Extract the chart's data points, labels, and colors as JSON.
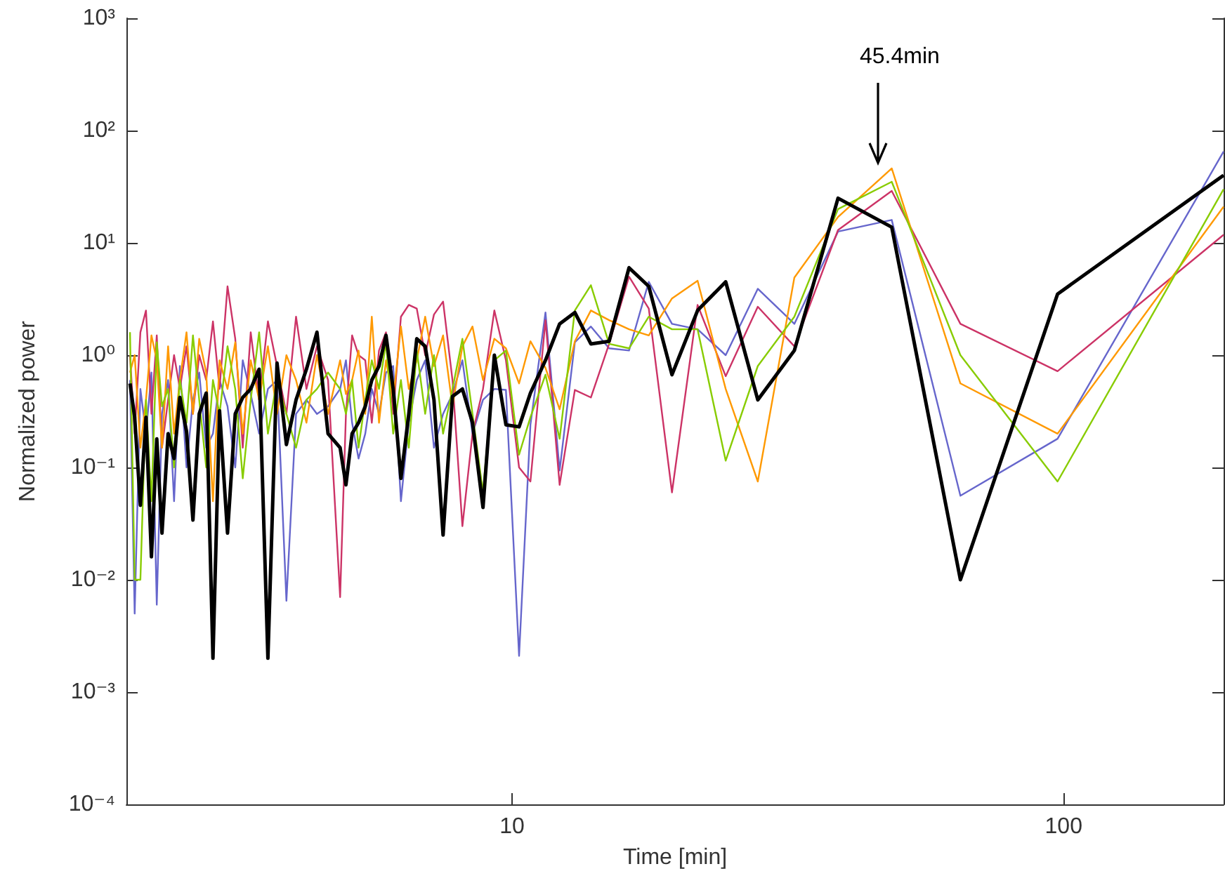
{
  "chart_data": {
    "type": "line",
    "xlabel": "Time [min]",
    "ylabel": "Normalized power",
    "log": "xy",
    "grid": false,
    "marker": "none",
    "line_style": "solid",
    "xlim": [
      2,
      195
    ],
    "xticks": [
      10,
      100
    ],
    "ylim": [
      0.0001,
      1000
    ],
    "yticks": [
      {
        "value": 0.0001,
        "label": "10⁻⁴"
      },
      {
        "value": 0.001,
        "label": "10⁻³"
      },
      {
        "value": 0.01,
        "label": "10⁻²"
      },
      {
        "value": 0.1,
        "label": "10⁻¹"
      },
      {
        "value": 1,
        "label": "10⁰"
      },
      {
        "value": 10,
        "label": "10¹"
      },
      {
        "value": 100,
        "label": "10²"
      },
      {
        "value": 1000,
        "label": "10³"
      }
    ],
    "annotations": [
      "45.4min"
    ],
    "x": [
      195,
      97.5,
      65,
      48.8,
      39,
      32.5,
      27.9,
      24.4,
      21.7,
      19.5,
      17.7,
      16.3,
      15,
      13.9,
      13,
      12.2,
      11.5,
      10.8,
      10.3,
      9.75,
      9.29,
      8.86,
      8.48,
      8.13,
      7.8,
      7.5,
      7.22,
      6.96,
      6.72,
      6.5,
      6.29,
      6.09,
      5.91,
      5.74,
      5.57,
      5.42,
      5.27,
      5.13,
      5,
      4.88,
      4.64,
      4.43,
      4.24,
      4.06,
      3.9,
      3.75,
      3.61,
      3.48,
      3.36,
      3.25,
      3.15,
      3.05,
      2.95,
      2.87,
      2.79,
      2.71,
      2.64,
      2.57,
      2.5,
      2.44,
      2.38,
      2.32,
      2.27,
      2.22,
      2.17,
      2.12,
      2.07,
      2.03
    ],
    "series": [
      {
        "color": "#6666cc",
        "values": [
          65,
          0.18,
          0.056,
          16,
          12.6,
          1.9,
          3.9,
          1.0,
          1.7,
          1.9,
          4.5,
          1.1,
          1.15,
          1.8,
          1.3,
          0.094,
          2.4,
          0.24,
          0.0021,
          0.49,
          0.5,
          0.4,
          0.2,
          0.9,
          0.45,
          0.3,
          0.15,
          0.9,
          0.6,
          0.25,
          0.05,
          0.8,
          0.7,
          0.3,
          0.5,
          0.2,
          0.12,
          0.25,
          0.9,
          0.5,
          0.35,
          0.3,
          0.4,
          0.3,
          0.0065,
          0.6,
          0.5,
          0.2,
          0.45,
          0.9,
          0.1,
          0.35,
          0.6,
          0.2,
          0.15,
          0.7,
          0.4,
          0.1,
          0.8,
          0.05,
          0.6,
          0.3,
          0.006,
          0.7,
          0.2,
          0.5,
          0.005,
          0.6
        ]
      },
      {
        "color": "#cc3366",
        "values": [
          11.8,
          0.72,
          1.9,
          29,
          13,
          1.2,
          2.7,
          0.65,
          2.8,
          0.06,
          2.6,
          5.0,
          1.26,
          0.42,
          0.49,
          0.07,
          2.05,
          0.075,
          0.1,
          0.9,
          2.5,
          0.5,
          0.2,
          0.03,
          0.6,
          3.0,
          2.3,
          1.0,
          2.6,
          2.8,
          2.2,
          0.3,
          1.6,
          1.1,
          0.25,
          0.9,
          1.0,
          1.5,
          0.3,
          0.007,
          0.6,
          1.2,
          0.5,
          2.2,
          0.3,
          0.8,
          2.0,
          0.4,
          1.6,
          0.15,
          1.4,
          4.1,
          0.5,
          2.0,
          0.6,
          1.0,
          0.3,
          1.2,
          0.5,
          1.0,
          0.4,
          0.15,
          1.5,
          0.3,
          2.5,
          1.6,
          0.2,
          1.0
        ]
      },
      {
        "color": "#ff9900",
        "values": [
          21,
          0.2,
          0.56,
          46,
          17,
          4.9,
          0.075,
          0.5,
          4.6,
          3.2,
          1.5,
          1.7,
          2.05,
          2.5,
          1.33,
          0.33,
          0.77,
          1.33,
          0.56,
          1.15,
          1.4,
          0.6,
          1.8,
          1.2,
          0.35,
          1.5,
          0.8,
          2.2,
          0.9,
          0.5,
          1.8,
          0.4,
          0.9,
          0.25,
          2.2,
          0.3,
          1.1,
          0.6,
          0.45,
          0.9,
          0.3,
          1.0,
          0.25,
          0.6,
          1.0,
          0.3,
          1.2,
          0.4,
          0.9,
          0.2,
          1.3,
          0.5,
          0.9,
          0.05,
          0.7,
          1.4,
          0.3,
          1.6,
          0.6,
          0.2,
          1.2,
          0.15,
          0.9,
          1.5,
          0.4,
          0.15,
          1.0,
          0.7
        ]
      },
      {
        "color": "#88cc00",
        "values": [
          30,
          0.075,
          1.0,
          35,
          20,
          2.2,
          0.8,
          0.115,
          1.7,
          1.7,
          2.2,
          1.15,
          1.26,
          4.2,
          2.5,
          0.18,
          0.67,
          0.28,
          0.13,
          1.1,
          0.9,
          0.06,
          0.3,
          1.4,
          0.5,
          0.2,
          1.0,
          0.3,
          1.1,
          0.15,
          0.6,
          0.2,
          1.3,
          0.5,
          0.9,
          0.4,
          0.15,
          0.6,
          0.3,
          0.5,
          0.7,
          0.5,
          0.4,
          0.15,
          0.3,
          0.6,
          0.2,
          1.6,
          0.4,
          0.08,
          0.5,
          1.2,
          0.3,
          0.6,
          0.1,
          0.4,
          1.5,
          0.25,
          0.6,
          0.1,
          0.5,
          0.35,
          1.3,
          0.05,
          0.4,
          0.01,
          0.01,
          1.6
        ]
      },
      {
        "color": "#000000",
        "values": [
          40,
          3.5,
          0.01,
          13.8,
          25,
          1.1,
          0.4,
          4.5,
          2.5,
          0.67,
          4.1,
          6.0,
          1.33,
          1.26,
          2.4,
          1.9,
          0.9,
          0.46,
          0.23,
          0.24,
          1.0,
          0.044,
          0.25,
          0.5,
          0.43,
          0.025,
          0.4,
          1.2,
          1.4,
          0.3,
          0.08,
          0.5,
          1.5,
          0.8,
          0.6,
          0.35,
          0.25,
          0.2,
          0.07,
          0.15,
          0.2,
          1.6,
          0.75,
          0.4,
          0.16,
          0.85,
          0.002,
          0.75,
          0.5,
          0.42,
          0.3,
          0.026,
          0.32,
          0.002,
          0.46,
          0.3,
          0.034,
          0.21,
          0.42,
          0.12,
          0.2,
          0.026,
          0.18,
          0.016,
          0.28,
          0.046,
          0.28,
          0.56
        ]
      }
    ]
  }
}
